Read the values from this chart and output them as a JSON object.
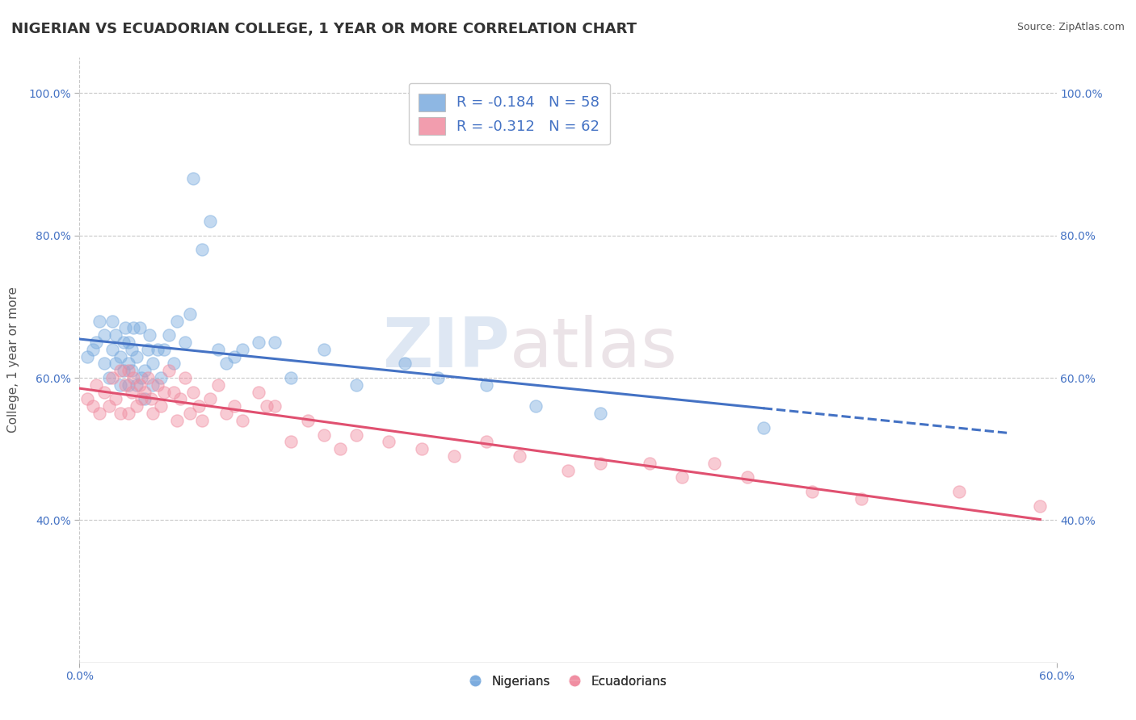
{
  "title": "NIGERIAN VS ECUADORIAN COLLEGE, 1 YEAR OR MORE CORRELATION CHART",
  "source": "Source: ZipAtlas.com",
  "ylabel": "College, 1 year or more",
  "xlim": [
    0.0,
    0.6
  ],
  "ylim": [
    0.2,
    1.05
  ],
  "xticks": [
    0.0,
    0.6
  ],
  "xticklabels": [
    "0.0%",
    "60.0%"
  ],
  "yticks": [
    0.4,
    0.6,
    0.8,
    1.0
  ],
  "yticklabels": [
    "40.0%",
    "60.0%",
    "80.0%",
    "100.0%"
  ],
  "legend_entries": [
    {
      "label": "R = -0.184   N = 58",
      "color": "#aec6e8"
    },
    {
      "label": "R = -0.312   N = 62",
      "color": "#f4b8c8"
    }
  ],
  "legend_labels": [
    "Nigerians",
    "Ecuadorians"
  ],
  "blue_color": "#7aabde",
  "pink_color": "#f08ca0",
  "line_blue": "#4472c4",
  "line_pink": "#e05070",
  "watermark_zip": "ZIP",
  "watermark_atlas": "atlas",
  "background_color": "#ffffff",
  "grid_color": "#c8c8c8",
  "title_fontsize": 13,
  "axis_fontsize": 11,
  "tick_fontsize": 10,
  "tick_color": "#4472c4",
  "marker_size": 120,
  "marker_alpha": 0.45,
  "line_width": 2.2,
  "nigerian_x": [
    0.005,
    0.008,
    0.01,
    0.012,
    0.015,
    0.015,
    0.018,
    0.02,
    0.02,
    0.022,
    0.022,
    0.025,
    0.025,
    0.027,
    0.027,
    0.028,
    0.03,
    0.03,
    0.03,
    0.032,
    0.032,
    0.033,
    0.035,
    0.035,
    0.037,
    0.038,
    0.04,
    0.04,
    0.042,
    0.043,
    0.045,
    0.045,
    0.048,
    0.05,
    0.052,
    0.055,
    0.058,
    0.06,
    0.065,
    0.068,
    0.07,
    0.075,
    0.08,
    0.085,
    0.09,
    0.095,
    0.1,
    0.11,
    0.12,
    0.13,
    0.15,
    0.17,
    0.2,
    0.22,
    0.25,
    0.28,
    0.32,
    0.42
  ],
  "nigerian_y": [
    0.63,
    0.64,
    0.65,
    0.68,
    0.62,
    0.66,
    0.6,
    0.64,
    0.68,
    0.62,
    0.66,
    0.59,
    0.63,
    0.61,
    0.65,
    0.67,
    0.59,
    0.62,
    0.65,
    0.61,
    0.64,
    0.67,
    0.59,
    0.63,
    0.67,
    0.6,
    0.57,
    0.61,
    0.64,
    0.66,
    0.59,
    0.62,
    0.64,
    0.6,
    0.64,
    0.66,
    0.62,
    0.68,
    0.65,
    0.69,
    0.88,
    0.78,
    0.82,
    0.64,
    0.62,
    0.63,
    0.64,
    0.65,
    0.65,
    0.6,
    0.64,
    0.59,
    0.62,
    0.6,
    0.59,
    0.56,
    0.55,
    0.53
  ],
  "ecuadorian_x": [
    0.005,
    0.008,
    0.01,
    0.012,
    0.015,
    0.018,
    0.02,
    0.022,
    0.025,
    0.025,
    0.028,
    0.03,
    0.03,
    0.032,
    0.033,
    0.035,
    0.037,
    0.038,
    0.04,
    0.042,
    0.044,
    0.045,
    0.048,
    0.05,
    0.052,
    0.055,
    0.058,
    0.06,
    0.062,
    0.065,
    0.068,
    0.07,
    0.073,
    0.075,
    0.08,
    0.085,
    0.09,
    0.095,
    0.1,
    0.11,
    0.115,
    0.12,
    0.13,
    0.14,
    0.15,
    0.16,
    0.17,
    0.19,
    0.21,
    0.23,
    0.25,
    0.27,
    0.3,
    0.32,
    0.35,
    0.37,
    0.39,
    0.41,
    0.45,
    0.48,
    0.54,
    0.59
  ],
  "ecuadorian_y": [
    0.57,
    0.56,
    0.59,
    0.55,
    0.58,
    0.56,
    0.6,
    0.57,
    0.61,
    0.55,
    0.59,
    0.61,
    0.55,
    0.58,
    0.6,
    0.56,
    0.59,
    0.57,
    0.58,
    0.6,
    0.57,
    0.55,
    0.59,
    0.56,
    0.58,
    0.61,
    0.58,
    0.54,
    0.57,
    0.6,
    0.55,
    0.58,
    0.56,
    0.54,
    0.57,
    0.59,
    0.55,
    0.56,
    0.54,
    0.58,
    0.56,
    0.56,
    0.51,
    0.54,
    0.52,
    0.5,
    0.52,
    0.51,
    0.5,
    0.49,
    0.51,
    0.49,
    0.47,
    0.48,
    0.48,
    0.46,
    0.48,
    0.46,
    0.44,
    0.43,
    0.44,
    0.42
  ]
}
